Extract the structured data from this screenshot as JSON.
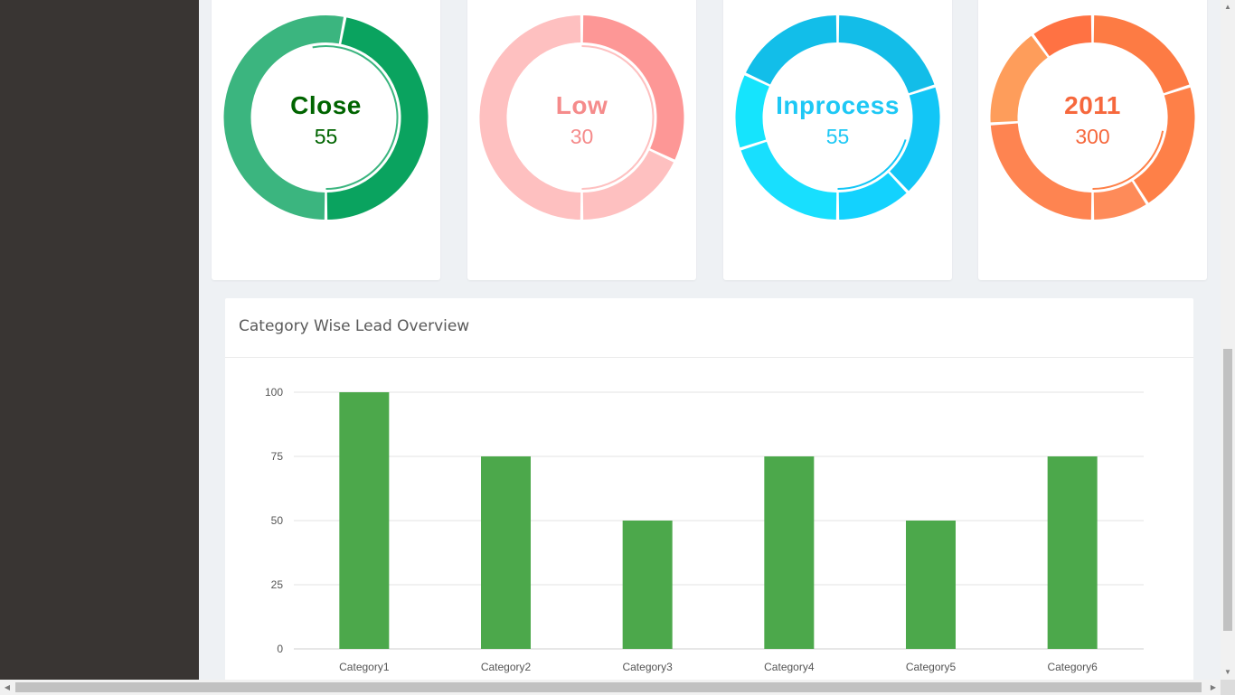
{
  "donuts": [
    {
      "label": "Close",
      "value": "55",
      "title_color": "#006400",
      "value_color": "#006400",
      "segments": [
        {
          "value": 47,
          "color": "#0aa35f"
        },
        {
          "value": 53,
          "color": "#3bb57f"
        }
      ],
      "inner_arc": {
        "value": 53,
        "color": "#3bb57f"
      }
    },
    {
      "label": "Low",
      "value": "30",
      "title_color": "#f58b8b",
      "value_color": "#f58b8b",
      "segments": [
        {
          "value": 18,
          "color": "#fec0c0"
        },
        {
          "value": 32,
          "color": "#fd9796"
        },
        {
          "value": 50,
          "color": "#fec0c0"
        }
      ],
      "inner_arc": {
        "value": 50,
        "color": "#fec0c0"
      }
    },
    {
      "label": "Inprocess",
      "value": "55",
      "title_color": "#1ec8f5",
      "value_color": "#1ec8f5",
      "segments": [
        {
          "value": 12,
          "color": "#13d2fe"
        },
        {
          "value": 18,
          "color": "#12c6f6"
        },
        {
          "value": 20,
          "color": "#13bde8"
        },
        {
          "value": 18,
          "color": "#12bee9"
        },
        {
          "value": 12,
          "color": "#15e4fd"
        },
        {
          "value": 20,
          "color": "#18dffe"
        }
      ],
      "inner_arc": {
        "value": 20,
        "color": "#12c6f6"
      }
    },
    {
      "label": "2011",
      "value": "300",
      "title_color": "#f6683d",
      "value_color": "#f6683d",
      "segments": [
        {
          "value": 9,
          "color": "#fe8b59"
        },
        {
          "value": 21,
          "color": "#fe8048"
        },
        {
          "value": 20,
          "color": "#fd7b44"
        },
        {
          "value": 10,
          "color": "#ff7243"
        },
        {
          "value": 16,
          "color": "#fe9d5b"
        },
        {
          "value": 24,
          "color": "#fe8451"
        }
      ],
      "inner_arc": {
        "value": 22,
        "color": "#fe8048"
      }
    }
  ],
  "chart_title": "Category Wise Lead Overview",
  "chart_data": {
    "type": "bar",
    "title": "Category Wise Lead Overview",
    "categories": [
      "Category1",
      "Category2",
      "Category3",
      "Category4",
      "Category5",
      "Category6"
    ],
    "values": [
      100,
      75,
      50,
      75,
      50,
      75
    ],
    "yticks": [
      "0",
      "25",
      "50",
      "75",
      "100"
    ],
    "ylim": [
      0,
      100
    ],
    "grid": true,
    "bar_color": "#4ca84b",
    "xlabel": "",
    "ylabel": ""
  },
  "colors": {
    "sidebar": "#393533",
    "page_background": "#eef1f4"
  }
}
